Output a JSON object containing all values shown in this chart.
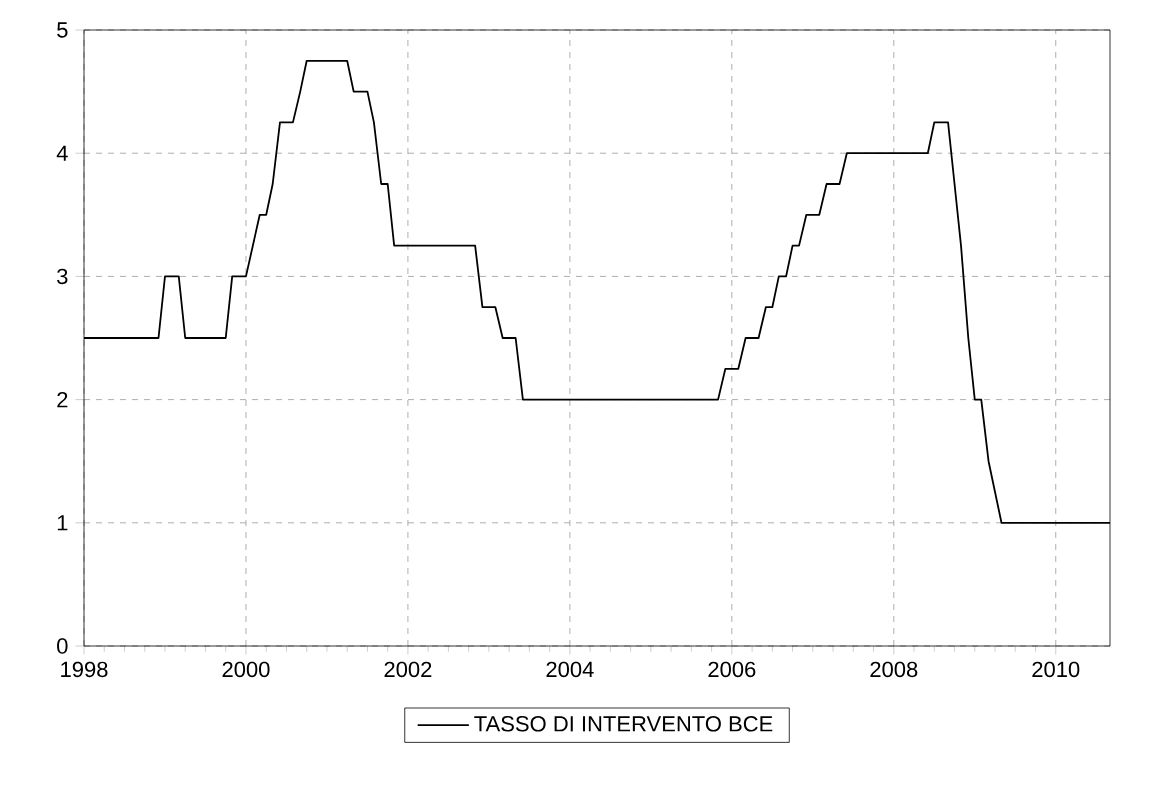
{
  "chart_data": {
    "type": "line",
    "x": [
      "1998-01",
      "1998-12",
      "1999-01",
      "1999-03",
      "1999-04",
      "1999-10",
      "1999-11",
      "2000-01",
      "2000-03",
      "2000-04",
      "2000-05",
      "2000-06",
      "2000-08",
      "2000-09",
      "2000-10",
      "2001-04",
      "2001-05",
      "2001-07",
      "2001-08",
      "2001-09",
      "2001-10",
      "2001-11",
      "2002-11",
      "2002-12",
      "2003-02",
      "2003-03",
      "2003-05",
      "2003-06",
      "2005-11",
      "2005-12",
      "2006-02",
      "2006-03",
      "2006-05",
      "2006-06",
      "2006-07",
      "2006-08",
      "2006-09",
      "2006-10",
      "2006-11",
      "2006-12",
      "2007-02",
      "2007-03",
      "2007-05",
      "2007-06",
      "2008-06",
      "2008-07",
      "2008-09",
      "2008-10",
      "2008-11",
      "2008-12",
      "2009-01",
      "2009-02",
      "2009-03",
      "2009-04",
      "2009-05",
      "2010-09"
    ],
    "series": [
      {
        "name": "TASSO DI INTERVENTO BCE",
        "color": "#000000",
        "values": [
          2.5,
          2.5,
          3.0,
          3.0,
          2.5,
          2.5,
          3.0,
          3.0,
          3.5,
          3.5,
          3.75,
          4.25,
          4.25,
          4.5,
          4.75,
          4.75,
          4.5,
          4.5,
          4.25,
          3.75,
          3.75,
          3.25,
          3.25,
          2.75,
          2.75,
          2.5,
          2.5,
          2.0,
          2.0,
          2.25,
          2.25,
          2.5,
          2.5,
          2.75,
          2.75,
          3.0,
          3.0,
          3.25,
          3.25,
          3.5,
          3.5,
          3.75,
          3.75,
          4.0,
          4.0,
          4.25,
          4.25,
          3.75,
          3.25,
          2.5,
          2.0,
          2.0,
          1.5,
          1.25,
          1.0,
          1.0
        ]
      }
    ],
    "xlim": [
      "1998-01",
      "2010-09"
    ],
    "xticks": [
      "1998",
      "2000",
      "2002",
      "2004",
      "2006",
      "2008",
      "2010"
    ],
    "ylim": [
      0,
      5
    ],
    "yticks": [
      0,
      1,
      2,
      3,
      4,
      5
    ],
    "grid": true,
    "legend": "bottom",
    "marker": "none",
    "line_style": "solid"
  }
}
